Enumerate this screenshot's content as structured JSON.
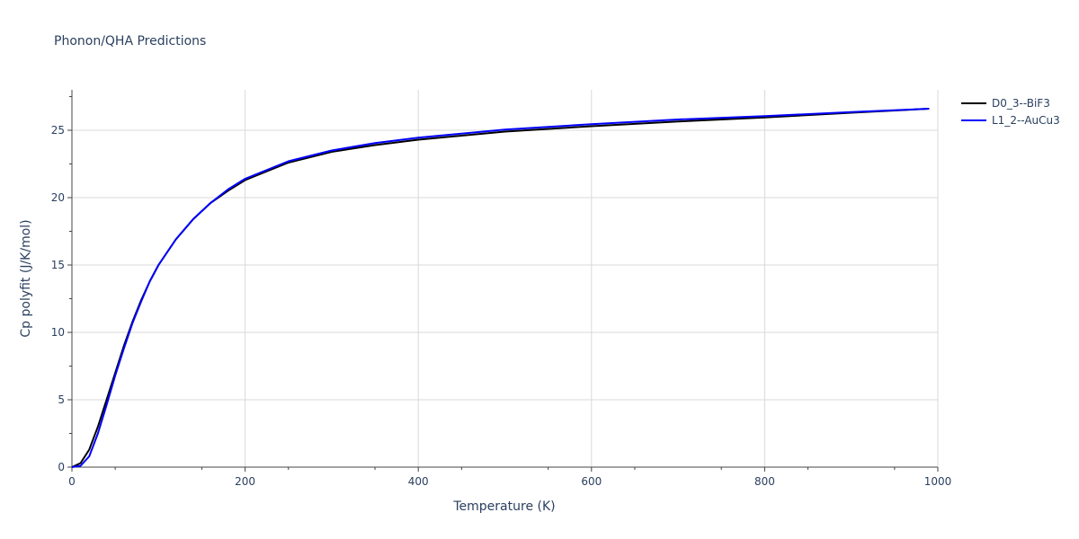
{
  "chart_data": {
    "type": "line",
    "title": "Phonon/QHA Predictions",
    "xlabel": "Temperature (K)",
    "ylabel": "Cp polyfit (J/K/mol)",
    "xlim": [
      0,
      1000
    ],
    "ylim": [
      0,
      28
    ],
    "xticks": [
      0,
      200,
      400,
      600,
      800,
      1000
    ],
    "yticks": [
      0,
      5,
      10,
      15,
      20,
      25
    ],
    "grid": true,
    "legend_position": "top-right",
    "series": [
      {
        "name": "D0_3--BiF3",
        "color": "#000000",
        "x": [
          0,
          10,
          20,
          30,
          40,
          50,
          60,
          70,
          80,
          90,
          100,
          120,
          140,
          160,
          180,
          200,
          250,
          300,
          350,
          400,
          500,
          600,
          700,
          800,
          900,
          990
        ],
        "y": [
          0,
          0.3,
          1.3,
          3.0,
          5.0,
          7.0,
          9.0,
          10.8,
          12.4,
          13.8,
          15.0,
          16.9,
          18.4,
          19.6,
          20.5,
          21.3,
          22.6,
          23.4,
          23.9,
          24.3,
          24.9,
          25.3,
          25.65,
          25.95,
          26.3,
          26.6
        ]
      },
      {
        "name": "L1_2--AuCu3",
        "color": "#0000ff",
        "x": [
          0,
          10,
          20,
          30,
          40,
          50,
          60,
          70,
          80,
          90,
          100,
          120,
          140,
          160,
          180,
          200,
          250,
          300,
          350,
          400,
          500,
          600,
          700,
          800,
          900,
          990
        ],
        "y": [
          0,
          0.1,
          0.8,
          2.5,
          4.6,
          6.8,
          8.8,
          10.7,
          12.3,
          13.8,
          15.0,
          16.9,
          18.4,
          19.6,
          20.6,
          21.4,
          22.7,
          23.5,
          24.05,
          24.45,
          25.05,
          25.45,
          25.8,
          26.05,
          26.35,
          26.6
        ]
      }
    ]
  }
}
